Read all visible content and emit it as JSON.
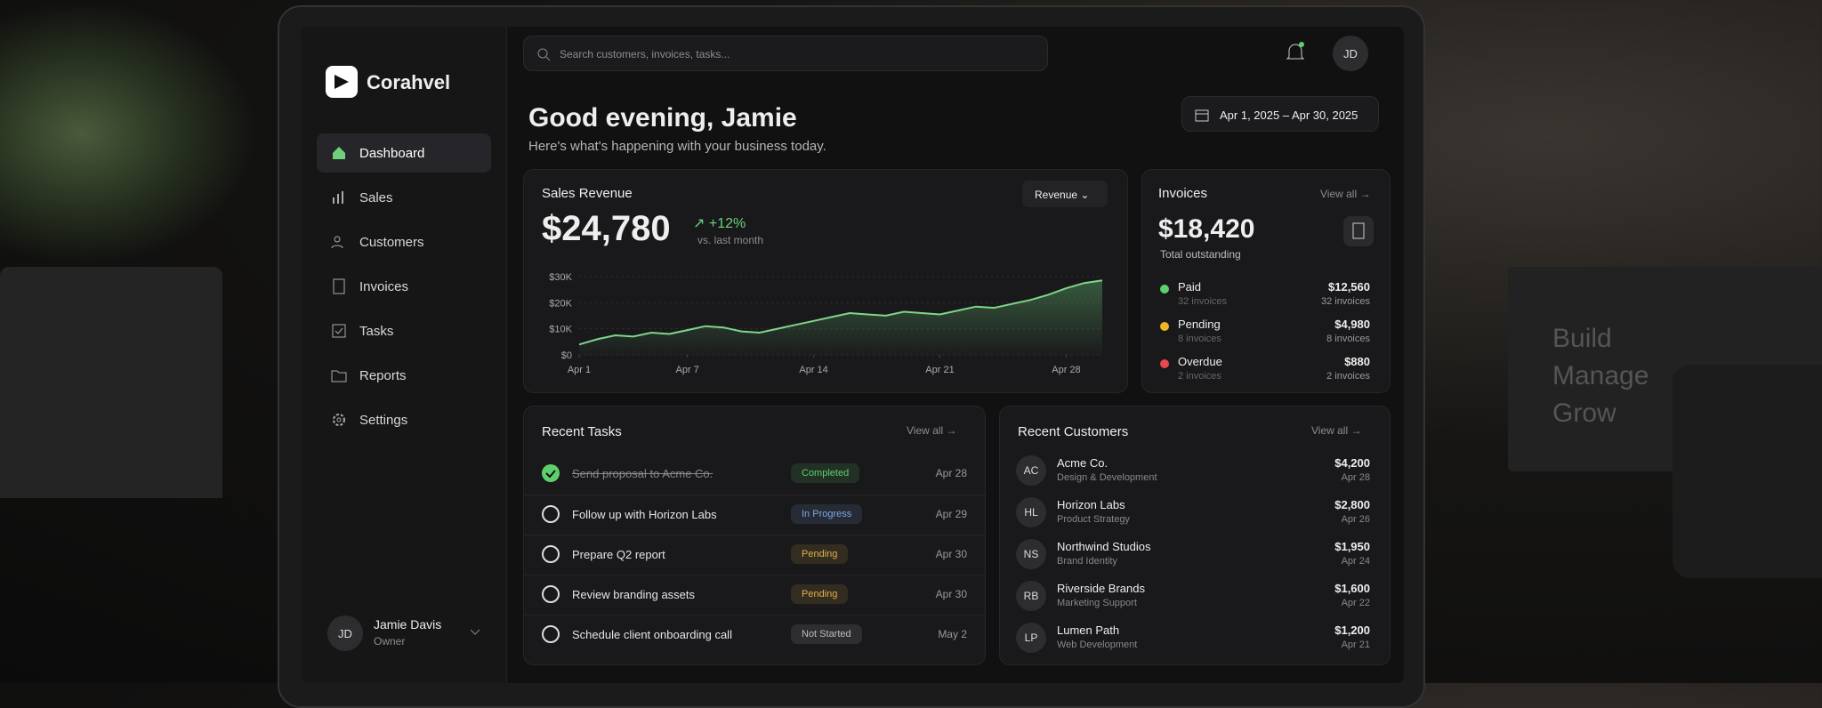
{
  "brand": "Corahvel",
  "nav": [
    "Dashboard",
    "Sales",
    "Customers",
    "Invoices",
    "Tasks",
    "Reports",
    "Settings"
  ],
  "user": {
    "initials": "JD",
    "name": "Jamie Davis",
    "role": "Owner"
  },
  "search_placeholder": "Search customers, invoices, tasks...",
  "greeting": "Good evening, Jamie",
  "subtitle": "Here's what's happening with your business today.",
  "date_range": "Apr 1, 2025 – Apr 30, 2025",
  "sales": {
    "title": "Sales Revenue",
    "dropdown": "Revenue",
    "amount": "$24,780",
    "change": "+12%",
    "comparison": "vs. last month",
    "chart": {
      "type": "line",
      "x": [
        1,
        2,
        3,
        4,
        5,
        6,
        7,
        8,
        9,
        10,
        11,
        12,
        13,
        14,
        15,
        16,
        17,
        18,
        19,
        20,
        21,
        22,
        23,
        24,
        25,
        26,
        27,
        28,
        29,
        30
      ],
      "values": [
        4000,
        6000,
        7500,
        7000,
        8500,
        8000,
        9500,
        11000,
        10500,
        9000,
        8500,
        10000,
        11500,
        13000,
        14500,
        16000,
        15500,
        15000,
        16500,
        16000,
        15500,
        17000,
        18500,
        18000,
        19500,
        21000,
        23000,
        25500,
        27500,
        28500
      ],
      "color": "#7fd68a",
      "xlim": [
        1,
        30
      ],
      "xticks": [
        {
          "value": 1,
          "label": "Apr 1"
        },
        {
          "value": 7,
          "label": "Apr 7"
        },
        {
          "value": 14,
          "label": "Apr 14"
        },
        {
          "value": 21,
          "label": "Apr 21"
        },
        {
          "value": 28,
          "label": "Apr 28"
        }
      ],
      "ylim": [
        0,
        32000
      ],
      "yticks": [
        {
          "value": 0,
          "label": "$0"
        },
        {
          "value": 10000,
          "label": "$10K"
        },
        {
          "value": 20000,
          "label": "$20K"
        },
        {
          "value": 30000,
          "label": "$30K"
        }
      ],
      "grid": true
    }
  },
  "invoices": {
    "title": "Invoices",
    "view_all": "View all",
    "amount": "$18,420",
    "caption": "Total outstanding",
    "rows": [
      {
        "name": "Paid",
        "color": "#5fcf6d",
        "amount": "$12,560",
        "count": "32 invoices"
      },
      {
        "name": "Pending",
        "color": "#f0b429",
        "amount": "$4,980",
        "count": "8 invoices"
      },
      {
        "name": "Overdue",
        "color": "#e5484d",
        "amount": "$880",
        "count": "2 invoices"
      }
    ]
  },
  "tasks": {
    "title": "Recent Tasks",
    "view_all": "View all",
    "rows": [
      {
        "task": "Send proposal to Acme Co.",
        "done": true,
        "status": "Completed",
        "color": "#5fcf6d",
        "date": "Apr 28"
      },
      {
        "task": "Follow up with Horizon Labs",
        "done": false,
        "status": "In Progress",
        "color": "#7ea7e6",
        "date": "Apr 29"
      },
      {
        "task": "Prepare Q2 report",
        "done": false,
        "status": "Pending",
        "color": "#e3b04b",
        "date": "Apr 30"
      },
      {
        "task": "Review branding assets",
        "done": false,
        "status": "Pending",
        "color": "#e3b04b",
        "date": "Apr 30"
      },
      {
        "task": "Schedule client onboarding call",
        "done": false,
        "status": "Not Started",
        "color": "#bdbdbd",
        "date": "May 2"
      }
    ]
  },
  "customers": {
    "title": "Recent Customers",
    "view_all": "View all",
    "rows": [
      {
        "initials": "AC",
        "name": "Acme Co.",
        "desc": "Design & Development",
        "amount": "$4,200",
        "date": "Apr 28"
      },
      {
        "initials": "HL",
        "name": "Horizon Labs",
        "desc": "Product Strategy",
        "amount": "$2,800",
        "date": "Apr 26"
      },
      {
        "initials": "NS",
        "name": "Northwind Studios",
        "desc": "Brand Identity",
        "amount": "$1,950",
        "date": "Apr 24"
      },
      {
        "initials": "RB",
        "name": "Riverside Brands",
        "desc": "Marketing Support",
        "amount": "$1,600",
        "date": "Apr 22"
      },
      {
        "initials": "LP",
        "name": "Lumen Path",
        "desc": "Web Development",
        "amount": "$1,200",
        "date": "Apr 21"
      }
    ]
  },
  "book": [
    "Build",
    "Manage",
    "Grow"
  ]
}
